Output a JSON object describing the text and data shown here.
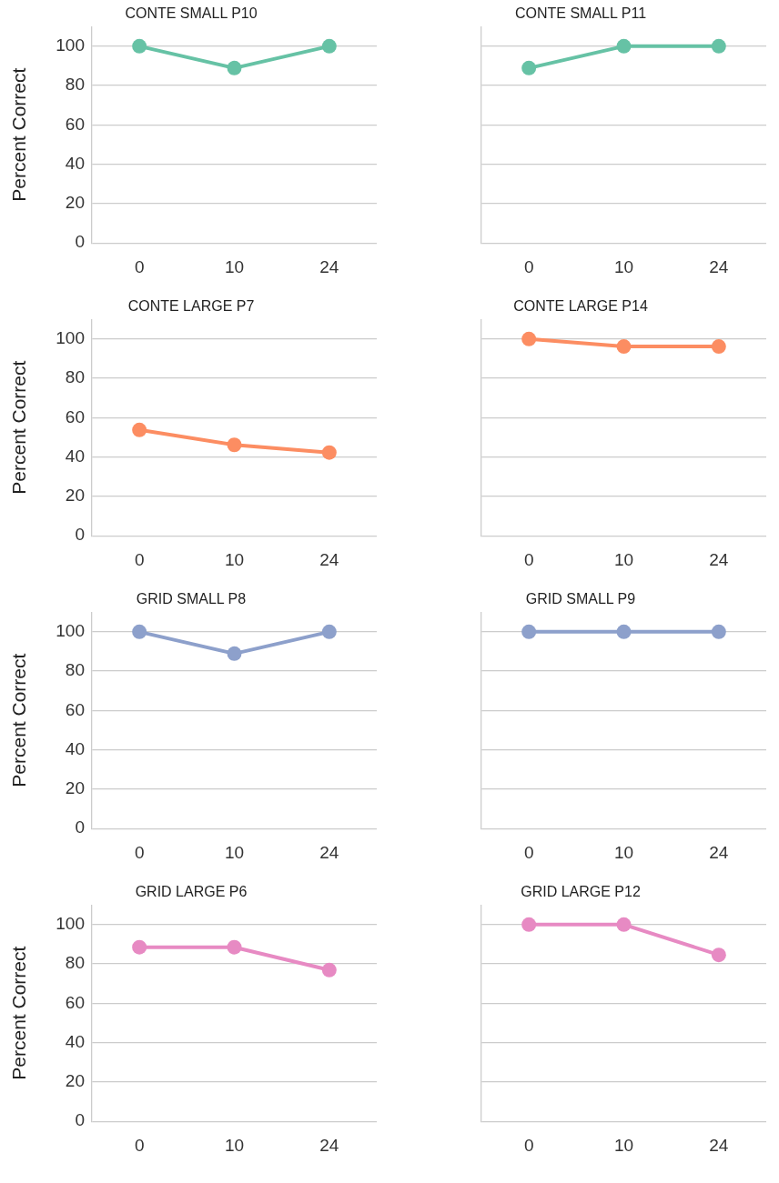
{
  "chart_data": [
    {
      "type": "line",
      "title": "CONTE SMALL P10",
      "ylabel": "Percent Correct",
      "categories": [
        "0",
        "10",
        "24"
      ],
      "series": [
        {
          "color": "#66c2a5",
          "values": [
            100,
            88.9,
            100
          ]
        }
      ],
      "ylim": [
        0,
        110
      ],
      "yticks": [
        0,
        20,
        40,
        60,
        80,
        100
      ],
      "grid": "y",
      "marker": "circle",
      "legend": false
    },
    {
      "type": "line",
      "title": "CONTE SMALL P11",
      "categories": [
        "0",
        "10",
        "24"
      ],
      "series": [
        {
          "color": "#66c2a5",
          "values": [
            88.9,
            100,
            100
          ]
        }
      ],
      "ylim": [
        0,
        110
      ],
      "yticks": [
        0,
        20,
        40,
        60,
        80,
        100
      ],
      "grid": "y",
      "marker": "circle",
      "legend": false,
      "tick_labels": "x"
    },
    {
      "type": "line",
      "title": "CONTE LARGE P7",
      "ylabel": "Percent Correct",
      "categories": [
        "0",
        "10",
        "24"
      ],
      "series": [
        {
          "color": "#fc8d62",
          "values": [
            53.8,
            46.2,
            42.3
          ]
        }
      ],
      "ylim": [
        0,
        110
      ],
      "yticks": [
        0,
        20,
        40,
        60,
        80,
        100
      ],
      "grid": "y",
      "marker": "circle",
      "legend": false
    },
    {
      "type": "line",
      "title": "CONTE LARGE P14",
      "categories": [
        "0",
        "10",
        "24"
      ],
      "series": [
        {
          "color": "#fc8d62",
          "values": [
            100,
            96.2,
            96.2
          ]
        }
      ],
      "ylim": [
        0,
        110
      ],
      "yticks": [
        0,
        20,
        40,
        60,
        80,
        100
      ],
      "grid": "y",
      "marker": "circle",
      "legend": false,
      "tick_labels": "x"
    },
    {
      "type": "line",
      "title": "GRID SMALL P8",
      "ylabel": "Percent Correct",
      "categories": [
        "0",
        "10",
        "24"
      ],
      "series": [
        {
          "color": "#8da0cb",
          "values": [
            100,
            88.9,
            100
          ]
        }
      ],
      "ylim": [
        0,
        110
      ],
      "yticks": [
        0,
        20,
        40,
        60,
        80,
        100
      ],
      "grid": "y",
      "marker": "circle",
      "legend": false
    },
    {
      "type": "line",
      "title": "GRID SMALL P9",
      "categories": [
        "0",
        "10",
        "24"
      ],
      "series": [
        {
          "color": "#8da0cb",
          "values": [
            100,
            100,
            100
          ]
        }
      ],
      "ylim": [
        0,
        110
      ],
      "yticks": [
        0,
        20,
        40,
        60,
        80,
        100
      ],
      "grid": "y",
      "marker": "circle",
      "legend": false,
      "tick_labels": "x"
    },
    {
      "type": "line",
      "title": "GRID LARGE P6",
      "ylabel": "Percent Correct",
      "categories": [
        "0",
        "10",
        "24"
      ],
      "series": [
        {
          "color": "#e78ac3",
          "values": [
            88.5,
            88.5,
            76.9
          ]
        }
      ],
      "ylim": [
        0,
        110
      ],
      "yticks": [
        0,
        20,
        40,
        60,
        80,
        100
      ],
      "grid": "y",
      "marker": "circle",
      "legend": false
    },
    {
      "type": "line",
      "title": "GRID LARGE P12",
      "categories": [
        "0",
        "10",
        "24"
      ],
      "series": [
        {
          "color": "#e78ac3",
          "values": [
            100,
            100,
            84.6
          ]
        }
      ],
      "ylim": [
        0,
        110
      ],
      "yticks": [
        0,
        20,
        40,
        60,
        80,
        100
      ],
      "grid": "y",
      "marker": "circle",
      "legend": false,
      "tick_labels": "x"
    }
  ]
}
